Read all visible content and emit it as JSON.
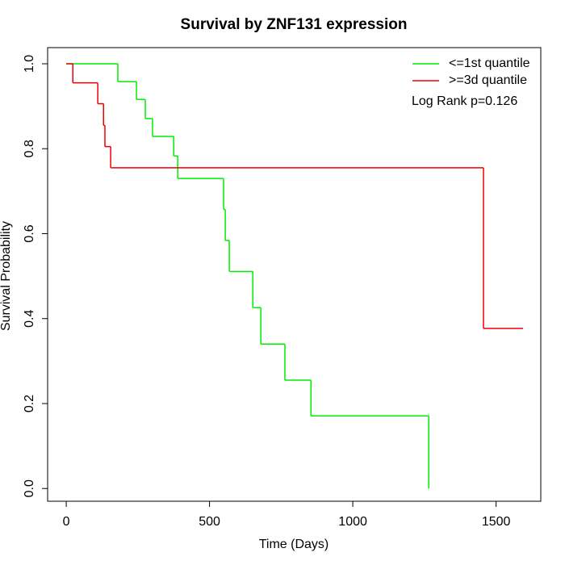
{
  "chart_data": {
    "type": "step",
    "title": "Survival by ZNF131 expression",
    "x_label": "Time (Days)",
    "y_label": "Survival Probability",
    "annotation": "Log Rank p=0.126",
    "legend": "top-right",
    "grid": false,
    "xlim": [
      -65,
      1656
    ],
    "ylim": [
      -0.03,
      1.038
    ],
    "xticks": [
      0,
      500,
      1000,
      1500
    ],
    "yticks": [
      {
        "value": 0,
        "label": "0.0"
      },
      0.2,
      0.4,
      0.6,
      0.8,
      {
        "value": 1,
        "label": "1.0"
      }
    ],
    "series": [
      {
        "name": "<=1st quantile",
        "color": "#00ee00",
        "x": [
          0,
          180,
          245,
          276,
          301,
          375,
          389,
          549,
          555,
          569,
          651,
          679,
          763,
          854,
          1265
        ],
        "values": [
          1,
          0.958,
          0.916,
          0.871,
          0.829,
          0.783,
          0.73,
          0.657,
          0.584,
          0.511,
          0.426,
          0.34,
          0.255,
          0.171,
          0
        ]
      },
      {
        "name": ">=3d quantile",
        "color": "#ee0000",
        "x": [
          0,
          23,
          110,
          130,
          135,
          155,
          1456,
          1594
        ],
        "values": [
          1,
          0.955,
          0.906,
          0.855,
          0.805,
          0.755,
          0.377,
          0.377
        ]
      }
    ]
  }
}
